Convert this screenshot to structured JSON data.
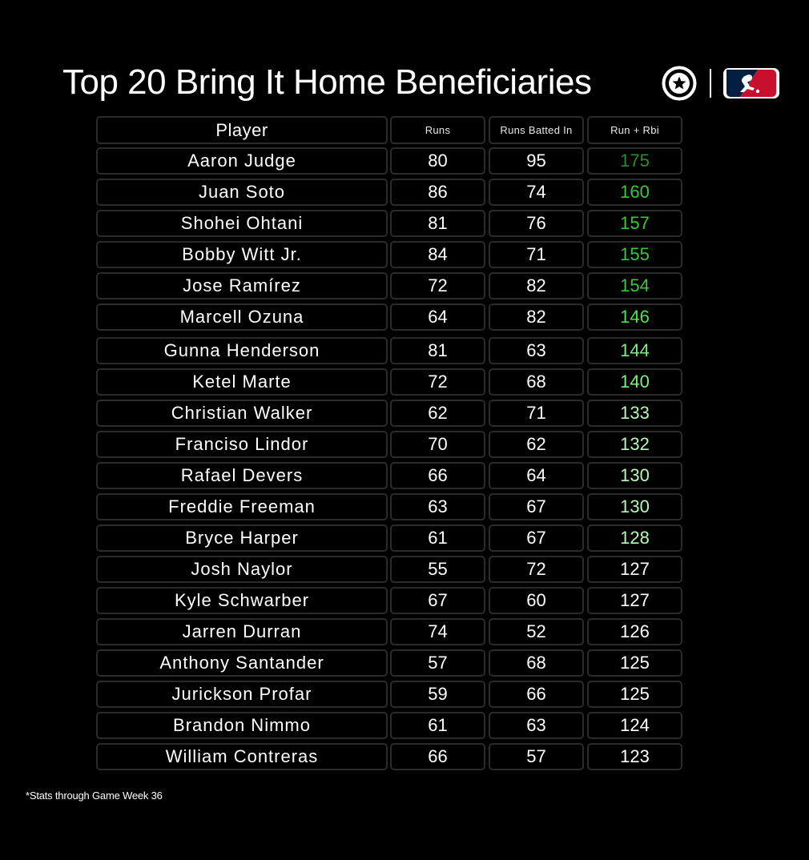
{
  "title": "Top 20 Bring It Home Beneficiaries",
  "footnote": "*Stats through Game Week 36",
  "brand": {
    "logo_left": "circled-star-logo",
    "logo_right": "mlb-logo",
    "mlb_red": "#c8102e",
    "mlb_blue": "#041e42"
  },
  "colors": {
    "total_scale": [
      "#2f8a2f",
      "#33a733",
      "#3cc63c",
      "#4de34d",
      "#7ef07e",
      "#b6f7b6",
      "#ffffff"
    ]
  },
  "chart_data": {
    "type": "table",
    "title": "Top 20 Bring It Home Beneficiaries",
    "columns": [
      "Player",
      "Runs",
      "Runs Batted In",
      "Run + Rbi"
    ],
    "rows": [
      {
        "player": "Aaron Judge",
        "runs": 80,
        "rbi": 95,
        "total": 175
      },
      {
        "player": "Juan Soto",
        "runs": 86,
        "rbi": 74,
        "total": 160
      },
      {
        "player": "Shohei Ohtani",
        "runs": 81,
        "rbi": 76,
        "total": 157
      },
      {
        "player": "Bobby Witt Jr.",
        "runs": 84,
        "rbi": 71,
        "total": 155
      },
      {
        "player": "Jose Ramírez",
        "runs": 72,
        "rbi": 82,
        "total": 154
      },
      {
        "player": "Marcell Ozuna",
        "runs": 64,
        "rbi": 82,
        "total": 146
      },
      {
        "player": "Gunna Henderson",
        "runs": 81,
        "rbi": 63,
        "total": 144
      },
      {
        "player": "Ketel Marte",
        "runs": 72,
        "rbi": 68,
        "total": 140
      },
      {
        "player": "Christian Walker",
        "runs": 62,
        "rbi": 71,
        "total": 133
      },
      {
        "player": "Franciso Lindor",
        "runs": 70,
        "rbi": 62,
        "total": 132
      },
      {
        "player": "Rafael Devers",
        "runs": 66,
        "rbi": 64,
        "total": 130
      },
      {
        "player": "Freddie Freeman",
        "runs": 63,
        "rbi": 67,
        "total": 130
      },
      {
        "player": "Bryce Harper",
        "runs": 61,
        "rbi": 67,
        "total": 128
      },
      {
        "player": "Josh Naylor",
        "runs": 55,
        "rbi": 72,
        "total": 127
      },
      {
        "player": "Kyle Schwarber",
        "runs": 67,
        "rbi": 60,
        "total": 127
      },
      {
        "player": "Jarren Durran",
        "runs": 74,
        "rbi": 52,
        "total": 126
      },
      {
        "player": "Anthony Santander",
        "runs": 57,
        "rbi": 68,
        "total": 125
      },
      {
        "player": "Jurickson Profar",
        "runs": 59,
        "rbi": 66,
        "total": 125
      },
      {
        "player": "Brandon Nimmo",
        "runs": 61,
        "rbi": 63,
        "total": 124
      },
      {
        "player": "William Contreras",
        "runs": 66,
        "rbi": 57,
        "total": 123
      }
    ]
  }
}
